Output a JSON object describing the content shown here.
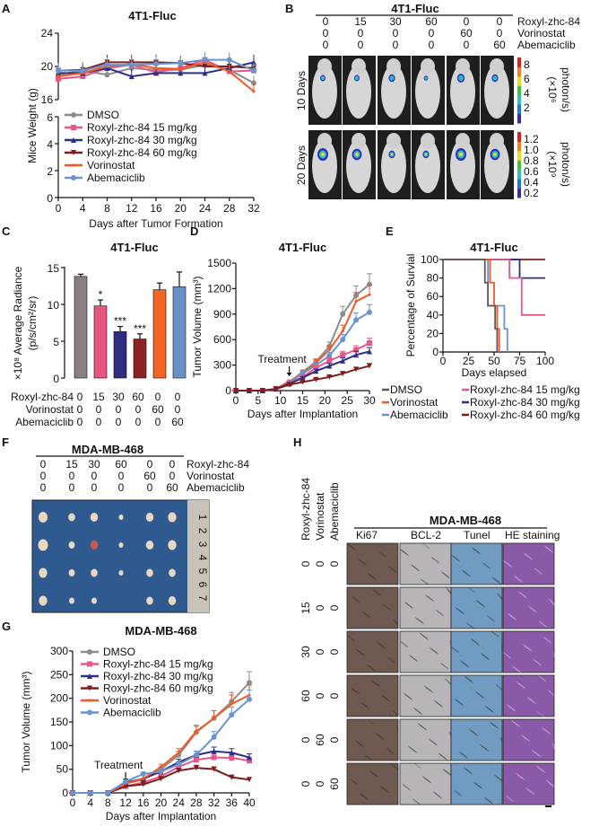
{
  "panel_letters": [
    "A",
    "B",
    "C",
    "D",
    "E",
    "F",
    "G",
    "H"
  ],
  "panel_b": {
    "title": "4T1-Fluc",
    "treatments": [
      {
        "name": "Roxyl-zhc-84",
        "doses": [
          "0",
          "15",
          "30",
          "60",
          "0",
          "0"
        ]
      },
      {
        "name": "Vorinostat",
        "doses": [
          "0",
          "0",
          "0",
          "0",
          "60",
          "0"
        ]
      },
      {
        "name": "Abemaciclib",
        "doses": [
          "0",
          "0",
          "0",
          "0",
          "0",
          "60"
        ]
      }
    ],
    "rows": [
      {
        "label": "10 Days",
        "scale": [
          "8",
          "6",
          "4",
          "2"
        ],
        "unit_1": "(×10⁶",
        "unit_2": "photon/s)"
      },
      {
        "label": "20 Days",
        "scale": [
          "1.2",
          "1.0",
          "0.8",
          "0.6",
          "0.4",
          "0.2"
        ],
        "unit_1": "(×10⁹",
        "unit_2": "photon/s)"
      }
    ],
    "colormap": [
      "#3b2aa0",
      "#1f78d0",
      "#2bc0c0",
      "#3cc23c",
      "#e8e020",
      "#f08020",
      "#e02020"
    ]
  },
  "panel_f": {
    "title": "MDA-MB-468",
    "treatments": [
      {
        "name": "Roxyl-zhc-84",
        "doses": [
          "0",
          "15",
          "30",
          "60",
          "0",
          "0"
        ]
      },
      {
        "name": "Vorinostat",
        "doses": [
          "0",
          "0",
          "0",
          "0",
          "60",
          "0"
        ]
      },
      {
        "name": "Abemaciclib",
        "doses": [
          "0",
          "0",
          "0",
          "0",
          "0",
          "60"
        ]
      }
    ],
    "ruler_marks": [
      "1",
      "2",
      "3",
      "4",
      "5",
      "6",
      "7"
    ],
    "background_color": "#2f5a8f"
  },
  "panel_h": {
    "title": "MDA-MB-468",
    "treatment_names": [
      "Roxyl-zhc-84",
      "Vorinostat",
      "Abemaciclib"
    ],
    "columns": [
      "Ki67",
      "BCL-2",
      "Tunel",
      "HE staining"
    ],
    "rows": [
      [
        "0",
        "0",
        "0"
      ],
      [
        "15",
        "0",
        "0"
      ],
      [
        "30",
        "0",
        "0"
      ],
      [
        "60",
        "0",
        "0"
      ],
      [
        "0",
        "60",
        "0"
      ],
      [
        "0",
        "0",
        "60"
      ]
    ],
    "stain_colors": [
      "#6e5a50",
      "#b8b4b8",
      "#6f9cc0",
      "#8a5aa8"
    ]
  },
  "chart_data": [
    {
      "id": "A",
      "type": "line",
      "title": "4T1-Fluc",
      "xlabel": "Days after Tumor Formation",
      "ylabel": "Mice Weight (g)",
      "x": [
        0,
        4,
        8,
        12,
        16,
        20,
        24,
        28,
        32
      ],
      "xticks": [
        "0",
        "4",
        "8",
        "12",
        "16",
        "20",
        "24",
        "28",
        "32"
      ],
      "yticks_upper": [
        "16",
        "20",
        "24"
      ],
      "yticks_lower": [
        "0",
        "2",
        "4",
        "6"
      ],
      "ylim": [
        0,
        24
      ],
      "y_axis_break": [
        6,
        16
      ],
      "legend": "bottom-left inside",
      "series": [
        {
          "name": "DMSO",
          "color": "#8c8c8c",
          "marker": "circle",
          "values": [
            19.0,
            19.5,
            19.0,
            19.8,
            19.6,
            19.6,
            20.2,
            19.6,
            18.0
          ]
        },
        {
          "name": "Roxyl-zhc-84 15 mg/kg",
          "color": "#e9578a",
          "marker": "square",
          "values": [
            18.5,
            18.8,
            19.8,
            20.2,
            19.3,
            19.8,
            20.8,
            19.4,
            19.5
          ]
        },
        {
          "name": "Roxyl-zhc-84 30 mg/kg",
          "color": "#2b2f86",
          "marker": "triangle-up",
          "values": [
            19.2,
            19.2,
            19.8,
            18.8,
            19.2,
            19.2,
            19.2,
            19.8,
            20.5
          ]
        },
        {
          "name": "Roxyl-zhc-84 60 mg/kg",
          "color": "#7f1d1d",
          "marker": "triangle-down",
          "values": [
            19.5,
            19.6,
            20.5,
            20.5,
            20.5,
            20.4,
            20.0,
            20.0,
            19.8
          ]
        },
        {
          "name": "Vorinostat",
          "color": "#f15a24",
          "marker": "diamond",
          "values": [
            18.8,
            19.2,
            20.0,
            20.3,
            19.8,
            19.7,
            20.5,
            19.4,
            17.0
          ]
        },
        {
          "name": "Abemaciclib",
          "color": "#6a93cf",
          "marker": "circle",
          "values": [
            19.5,
            19.5,
            20.2,
            20.2,
            20.3,
            20.4,
            20.8,
            20.8,
            19.5
          ]
        }
      ]
    },
    {
      "id": "C",
      "type": "bar",
      "title": "4T1-Fluc",
      "ylabel_1": "×10⁸ Average Radiance",
      "ylabel_2": "(p/s/cm²/sr)",
      "ylim": [
        0,
        15
      ],
      "yticks": [
        "0",
        "5",
        "10",
        "15"
      ],
      "values": [
        13.8,
        9.8,
        6.3,
        5.3,
        12.0,
        12.4
      ],
      "errors": [
        0.3,
        0.8,
        0.7,
        0.7,
        0.9,
        2.0
      ],
      "significance": [
        "",
        "*",
        "***",
        "***",
        "",
        ""
      ],
      "colors": [
        "#8a7f7f",
        "#e8557e",
        "#2e2d7f",
        "#8b2323",
        "#f26522",
        "#6b8fc7"
      ],
      "group_labels": [
        {
          "name": "Roxyl-zhc-84",
          "doses": [
            "0",
            "15",
            "30",
            "60",
            "0",
            "0"
          ]
        },
        {
          "name": "Vorinostat",
          "doses": [
            "0",
            "0",
            "0",
            "0",
            "60",
            "0"
          ]
        },
        {
          "name": "Abemaciclib",
          "doses": [
            "0",
            "0",
            "0",
            "0",
            "0",
            "60"
          ]
        }
      ]
    },
    {
      "id": "D",
      "type": "line",
      "title": "4T1-Fluc",
      "xlabel": "Days after Implantation",
      "ylabel": "Tumor Volume (mm³)",
      "x": [
        0,
        3,
        6,
        9,
        12,
        15,
        18,
        21,
        24,
        27,
        30
      ],
      "xlim": [
        0,
        30
      ],
      "ylim": [
        0,
        1500
      ],
      "xticks": [
        "0",
        "5",
        "10",
        "15",
        "20",
        "25",
        "30"
      ],
      "yticks": [
        "0",
        "300",
        "600",
        "900",
        "1200",
        "1500"
      ],
      "annotation": {
        "text": "Treatment",
        "x": 12
      },
      "series": [
        {
          "name": "DMSO",
          "color": "#8c8c8c",
          "marker": "circle",
          "values": [
            0,
            0,
            0,
            20,
            100,
            220,
            340,
            520,
            900,
            1120,
            1250
          ]
        },
        {
          "name": "Vorinostat",
          "color": "#f15a24",
          "marker": "diamond",
          "values": [
            0,
            0,
            0,
            20,
            110,
            200,
            330,
            480,
            700,
            1050,
            1130
          ]
        },
        {
          "name": "Abemaciclib",
          "color": "#6a93cf",
          "marker": "circle",
          "values": [
            0,
            0,
            0,
            20,
            90,
            200,
            300,
            410,
            600,
            830,
            920
          ]
        },
        {
          "name": "Roxyl-zhc-84 15 mg/kg",
          "color": "#e9578a",
          "marker": "square",
          "values": [
            0,
            0,
            0,
            20,
            80,
            160,
            270,
            350,
            420,
            480,
            560
          ]
        },
        {
          "name": "Roxyl-zhc-84 30 mg/kg",
          "color": "#2b2f86",
          "marker": "triangle-up",
          "values": [
            0,
            0,
            0,
            20,
            80,
            150,
            230,
            290,
            350,
            420,
            460
          ]
        },
        {
          "name": "Roxyl-zhc-84 60 mg/kg",
          "color": "#7f1d1d",
          "marker": "triangle-down",
          "values": [
            0,
            0,
            0,
            20,
            70,
            100,
            130,
            160,
            200,
            250,
            290
          ]
        }
      ]
    },
    {
      "id": "E",
      "type": "line",
      "subtype": "survival-step",
      "title": "4T1-Fluc",
      "xlabel": "Days elapsed",
      "ylabel": "Percentage of Survial",
      "xlim": [
        0,
        100
      ],
      "ylim": [
        0,
        100
      ],
      "xticks": [
        "0",
        "25",
        "50",
        "75",
        "100"
      ],
      "yticks": [
        "0",
        "20",
        "40",
        "60",
        "80",
        "100"
      ],
      "legend": "below",
      "series": [
        {
          "name": "DMSO",
          "color": "#5a5a5a",
          "points": [
            [
              0,
              100
            ],
            [
              41,
              100
            ],
            [
              41,
              75
            ],
            [
              44,
              75
            ],
            [
              44,
              50
            ],
            [
              51,
              50
            ],
            [
              51,
              25
            ],
            [
              53,
              25
            ],
            [
              53,
              0
            ]
          ]
        },
        {
          "name": "Vorinostat",
          "color": "#f15a24",
          "points": [
            [
              0,
              100
            ],
            [
              46,
              100
            ],
            [
              46,
              75
            ],
            [
              50,
              75
            ],
            [
              50,
              50
            ],
            [
              53,
              50
            ],
            [
              53,
              25
            ],
            [
              55,
              25
            ],
            [
              55,
              0
            ]
          ]
        },
        {
          "name": "Abemaciclib",
          "color": "#6a93cf",
          "points": [
            [
              0,
              100
            ],
            [
              44,
              100
            ],
            [
              44,
              50
            ],
            [
              60,
              50
            ],
            [
              60,
              25
            ],
            [
              63,
              25
            ],
            [
              63,
              0
            ]
          ]
        },
        {
          "name": "Roxyl-zhc-84 15 mg/kg",
          "color": "#e9578a",
          "points": [
            [
              0,
              100
            ],
            [
              65,
              100
            ],
            [
              65,
              80
            ],
            [
              77,
              80
            ],
            [
              77,
              40
            ],
            [
              100,
              40
            ]
          ]
        },
        {
          "name": "Roxyl-zhc-84 30 mg/kg",
          "color": "#2b2f86",
          "points": [
            [
              0,
              100
            ],
            [
              75,
              100
            ],
            [
              75,
              80
            ],
            [
              100,
              80
            ]
          ]
        },
        {
          "name": "Roxyl-zhc-84 60 mg/kg",
          "color": "#7f1d1d",
          "points": [
            [
              0,
              100
            ],
            [
              100,
              100
            ]
          ]
        }
      ]
    },
    {
      "id": "G",
      "type": "line",
      "title": "MDA-MB-468",
      "xlabel": "Days after Implantation",
      "ylabel": "Tumor Volume (mm³)",
      "x": [
        0,
        4,
        8,
        12,
        16,
        20,
        24,
        28,
        32,
        36,
        40
      ],
      "xlim": [
        0,
        40
      ],
      "ylim": [
        0,
        300
      ],
      "xticks": [
        "0",
        "4",
        "8",
        "12",
        "16",
        "20",
        "24",
        "28",
        "32",
        "36",
        "40"
      ],
      "yticks": [
        "0",
        "50",
        "100",
        "150",
        "200",
        "250",
        "300"
      ],
      "annotation": {
        "text": "Treatment",
        "x": 12
      },
      "legend": "top-left",
      "series": [
        {
          "name": "DMSO",
          "color": "#8c8c8c",
          "marker": "circle",
          "values": [
            0,
            0,
            0,
            20,
            28,
            50,
            80,
            128,
            158,
            193,
            233
          ]
        },
        {
          "name": "Roxyl-zhc-84 15 mg/kg",
          "color": "#e9578a",
          "marker": "square",
          "values": [
            0,
            0,
            0,
            14,
            22,
            35,
            55,
            70,
            75,
            74,
            68
          ]
        },
        {
          "name": "Roxyl-zhc-84 30 mg/kg",
          "color": "#2b2f86",
          "marker": "triangle-up",
          "values": [
            0,
            0,
            0,
            22,
            30,
            45,
            65,
            80,
            88,
            85,
            75
          ]
        },
        {
          "name": "Roxyl-zhc-84 60 mg/kg",
          "color": "#7f1d1d",
          "marker": "triangle-down",
          "values": [
            0,
            0,
            0,
            14,
            18,
            30,
            47,
            53,
            50,
            33,
            28
          ]
        },
        {
          "name": "Vorinostat",
          "color": "#f15a24",
          "marker": "diamond",
          "values": [
            0,
            0,
            0,
            20,
            30,
            55,
            85,
            130,
            158,
            188,
            207
          ]
        },
        {
          "name": "Abemaciclib",
          "color": "#6a93cf",
          "marker": "circle",
          "values": [
            0,
            0,
            0,
            24,
            40,
            45,
            60,
            80,
            118,
            165,
            198
          ]
        }
      ]
    }
  ]
}
